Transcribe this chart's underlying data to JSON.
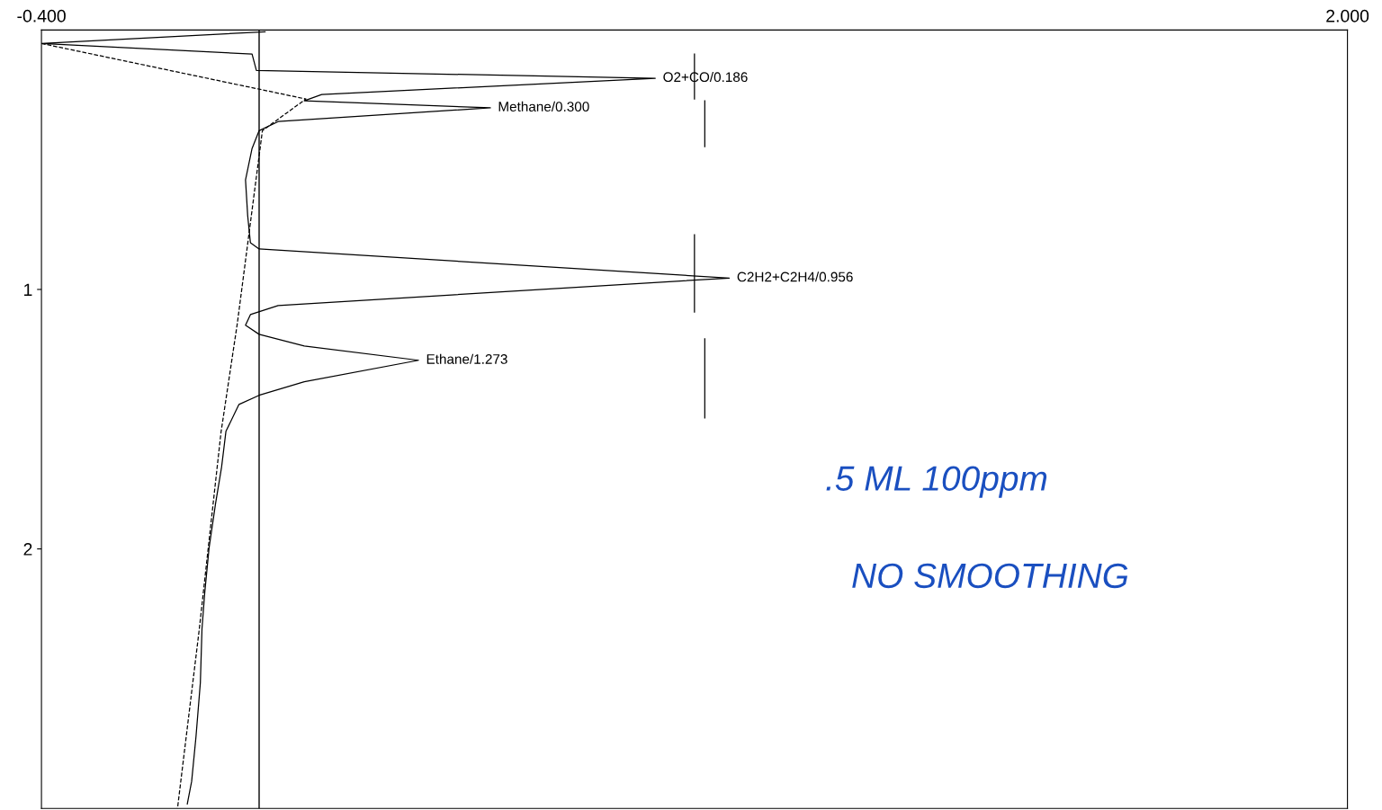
{
  "chart_data": {
    "type": "line",
    "orientation": "horizontal",
    "x": [
      0.007,
      0.052,
      0.093,
      0.156,
      0.186,
      0.249,
      0.273,
      0.3,
      0.353,
      0.388,
      0.457,
      0.578,
      0.716,
      0.82,
      0.844,
      0.956,
      1.062,
      1.097,
      1.138,
      1.173,
      1.218,
      1.273,
      1.356,
      1.408,
      1.443,
      1.547,
      1.685,
      1.824,
      1.997,
      2.17,
      2.308,
      2.516,
      2.723,
      2.896,
      2.983
    ],
    "series": [
      {
        "color": "#000000",
        "line_style": "solid",
        "values": [
          0.011,
          -0.4,
          -0.013,
          -0.005,
          0.728,
          0.115,
          0.083,
          0.425,
          0.035,
          0.0,
          -0.013,
          -0.025,
          -0.021,
          -0.016,
          0.0,
          0.864,
          0.035,
          -0.016,
          -0.025,
          0.0,
          0.083,
          0.293,
          0.083,
          0.0,
          -0.037,
          -0.061,
          -0.069,
          -0.08,
          -0.092,
          -0.1,
          -0.105,
          -0.108,
          -0.116,
          -0.124,
          -0.132
        ]
      },
      {
        "color": "#000000",
        "line_style": "dashed",
        "x": [
          0.052,
          0.266,
          0.388,
          1.13,
          1.55,
          2.31,
          3.0
        ],
        "values": [
          -0.4,
          0.086,
          0.006,
          -0.04,
          -0.07,
          -0.11,
          -0.15
        ]
      },
      {
        "color": "#000000",
        "line_style": "solid",
        "x": [
          0.093,
          0.266
        ],
        "values": [
          0.8,
          0.8
        ]
      },
      {
        "color": "#000000",
        "line_style": "solid",
        "x": [
          0.273,
          0.45
        ],
        "values": [
          0.819,
          0.819
        ]
      },
      {
        "color": "#000000",
        "line_style": "solid",
        "x": [
          0.789,
          1.087
        ],
        "values": [
          0.8,
          0.8
        ]
      },
      {
        "color": "#000000",
        "line_style": "solid",
        "x": [
          1.19,
          1.495
        ],
        "values": [
          0.819,
          0.819
        ]
      }
    ],
    "xlim": [
      -0.4,
      2.0
    ],
    "xticks": [
      {
        "value": -0.4,
        "label": "-0.400"
      },
      {
        "value": 2.0,
        "label": "2.000"
      }
    ],
    "ylim": [
      3.0,
      0.0
    ],
    "yticks": [
      1,
      2
    ],
    "ref_lines": [
      {
        "axis": "x",
        "value": 0.0,
        "color": "#000000",
        "line_style": "solid"
      }
    ],
    "annotations": [
      {
        "text": "O2+CO/0.186",
        "x": 0.728,
        "y": 0.186
      },
      {
        "text": "Methane/0.300",
        "x": 0.425,
        "y": 0.3
      },
      {
        "text": "C2H2+C2H4/0.956",
        "x": 0.864,
        "y": 0.956
      },
      {
        "text": "Ethane/1.273",
        "x": 0.293,
        "y": 1.273
      },
      ".5 ML 100ppm",
      "NO SMOOTHING"
    ],
    "grid": false,
    "legend": false
  }
}
